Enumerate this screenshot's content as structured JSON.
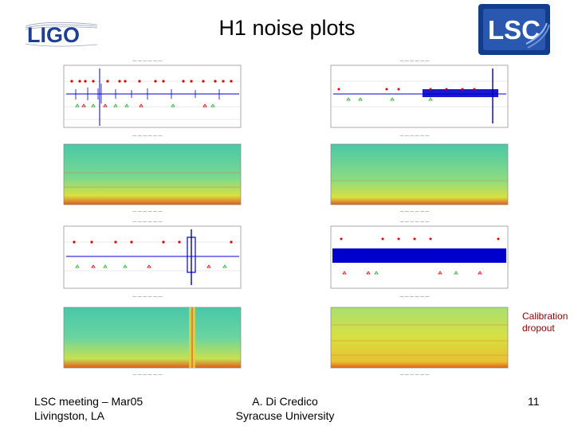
{
  "slide": {
    "title": "H1 noise plots",
    "ligo_logo_text": "LIGO",
    "lsc_logo_text": "LSC",
    "note": {
      "line1": "Calibration",
      "line2": "dropout"
    },
    "footer": {
      "left_line1": "LSC meeting – Mar05",
      "left_line2": "Livingston, LA",
      "center_line1": "A. Di Credico",
      "center_line2": "Syracuse University",
      "page_number": "11"
    }
  },
  "colors": {
    "ligo_blue": "#1c3f94",
    "lsc_blue": "#123c8c",
    "note_red": "#8b0000",
    "trace_blue": "#0000cc",
    "marker_red": "#dd0000",
    "marker_green": "#22aa22",
    "spectrogram_teal": "#48c8a8",
    "spectrogram_yellow": "#d8e040"
  }
}
